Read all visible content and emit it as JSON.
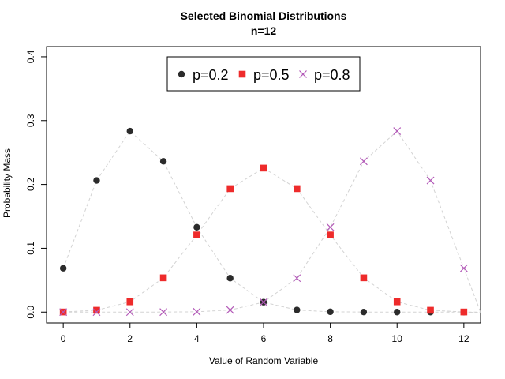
{
  "chart_data": {
    "type": "scatter",
    "title": "Selected Binomial Distributions",
    "subtitle": "n=12",
    "xlabel": "Value of Random Variable",
    "ylabel": "Probability Mass",
    "xlim": [
      -0.5,
      12.5
    ],
    "ylim": [
      -0.017,
      0.416
    ],
    "xticks": [
      0,
      2,
      4,
      6,
      8,
      10,
      12
    ],
    "yticks": [
      0.0,
      0.1,
      0.2,
      0.3,
      0.4
    ],
    "ytick_labels": [
      "0.0",
      "0.1",
      "0.2",
      "0.3",
      "0.4"
    ],
    "grid": false,
    "legend_placement": "top-center",
    "x": [
      0,
      1,
      2,
      3,
      4,
      5,
      6,
      7,
      8,
      9,
      10,
      11,
      12
    ],
    "series": [
      {
        "name": "p=0.2",
        "marker": "circle",
        "color": "#2b2b2b",
        "values": [
          0.0687,
          0.2062,
          0.2835,
          0.2362,
          0.1329,
          0.0532,
          0.0155,
          0.0033,
          0.0005,
          0.0001,
          0.0,
          0.0,
          0.0
        ]
      },
      {
        "name": "p=0.5",
        "marker": "square",
        "color": "#ee2b2b",
        "values": [
          0.0002,
          0.0029,
          0.0161,
          0.0537,
          0.1208,
          0.1934,
          0.2256,
          0.1934,
          0.1208,
          0.0537,
          0.0161,
          0.0029,
          0.0002
        ]
      },
      {
        "name": "p=0.8",
        "marker": "cross",
        "color": "#b35ab8",
        "values": [
          0.0,
          0.0,
          0.0,
          0.0001,
          0.0005,
          0.0033,
          0.0155,
          0.0532,
          0.1329,
          0.2362,
          0.2835,
          0.2062,
          0.0687
        ]
      }
    ],
    "connector_color": "#d3d3d3"
  }
}
